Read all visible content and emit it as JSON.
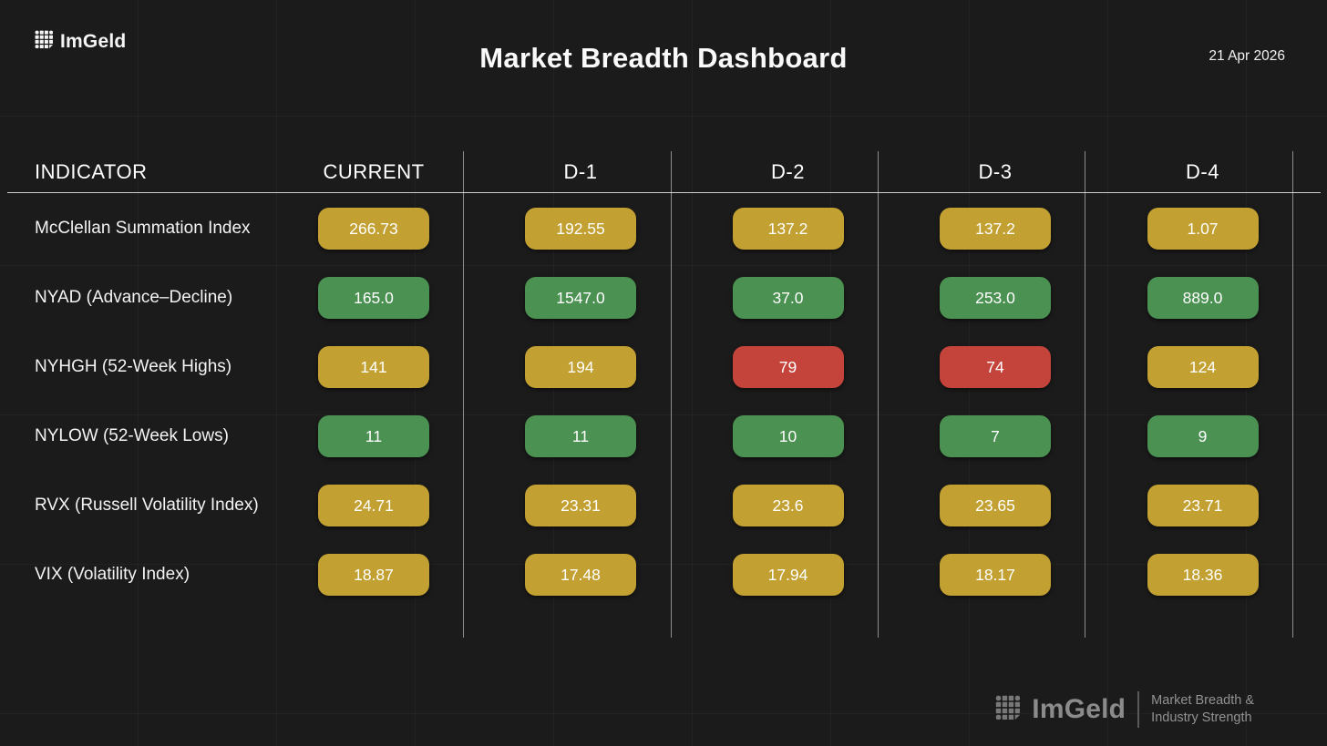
{
  "brand": {
    "name": "ImGeld"
  },
  "chart_data": {
    "type": "table",
    "title": "Market Breadth Dashboard",
    "date": "21 Apr 2026",
    "columns": [
      "INDICATOR",
      "CURRENT",
      "D-1",
      "D-2",
      "D-3",
      "D-4"
    ],
    "rows": [
      {
        "indicator": "McClellan Summation Index",
        "values": [
          "266.73",
          "192.55",
          "137.2",
          "137.2",
          "1.07"
        ],
        "statuses": [
          "amber",
          "amber",
          "amber",
          "amber",
          "amber"
        ]
      },
      {
        "indicator": "NYAD (Advance–Decline)",
        "values": [
          "165.0",
          "1547.0",
          "37.0",
          "253.0",
          "889.0"
        ],
        "statuses": [
          "green",
          "green",
          "green",
          "green",
          "green"
        ]
      },
      {
        "indicator": "NYHGH (52-Week Highs)",
        "values": [
          "141",
          "194",
          "79",
          "74",
          "124"
        ],
        "statuses": [
          "amber",
          "amber",
          "red",
          "red",
          "amber"
        ]
      },
      {
        "indicator": "NYLOW (52-Week Lows)",
        "values": [
          "11",
          "11",
          "10",
          "7",
          "9"
        ],
        "statuses": [
          "green",
          "green",
          "green",
          "green",
          "green"
        ]
      },
      {
        "indicator": "RVX (Russell Volatility Index)",
        "values": [
          "24.71",
          "23.31",
          "23.6",
          "23.65",
          "23.71"
        ],
        "statuses": [
          "amber",
          "amber",
          "amber",
          "amber",
          "amber"
        ]
      },
      {
        "indicator": "VIX (Volatility Index)",
        "values": [
          "18.87",
          "17.48",
          "17.94",
          "18.17",
          "18.36"
        ],
        "statuses": [
          "amber",
          "amber",
          "amber",
          "amber",
          "amber"
        ]
      }
    ],
    "status_colors": {
      "amber": "#C2A032",
      "green": "#4A9152",
      "red": "#C4443C"
    }
  },
  "footer": {
    "tagline_line1": "Market Breadth &",
    "tagline_line2": "Industry Strength"
  }
}
